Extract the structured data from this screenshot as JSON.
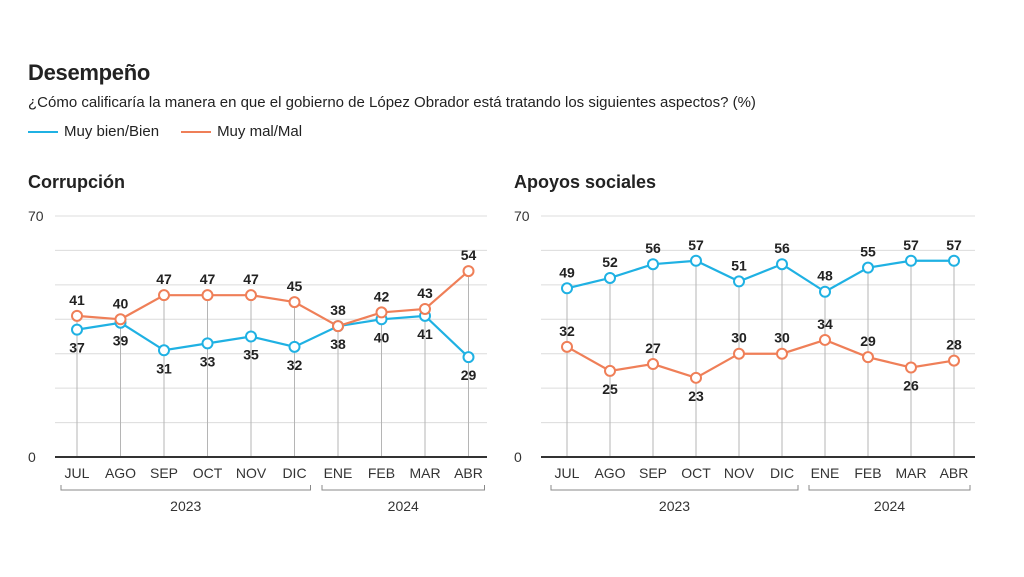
{
  "title": "Desempeño",
  "subtitle": "¿Cómo calificaría la manera en que el gobierno de López Obrador está tratando los siguientes aspectos? (%)",
  "legend": [
    {
      "label": "Muy bien/Bien",
      "color": "#1fb1e3"
    },
    {
      "label": "Muy mal/Mal",
      "color": "#ef7f58"
    }
  ],
  "chart_data": [
    {
      "type": "line",
      "title": "Corrupción",
      "categories": [
        "JUL",
        "AGO",
        "SEP",
        "OCT",
        "NOV",
        "DIC",
        "ENE",
        "FEB",
        "MAR",
        "ABR"
      ],
      "years": [
        {
          "label": "2023",
          "from": 0,
          "to": 5
        },
        {
          "label": "2024",
          "from": 6,
          "to": 9
        }
      ],
      "ylim": [
        0,
        70
      ],
      "yticks": [
        "0",
        "70"
      ],
      "series": [
        {
          "name": "Muy bien/Bien",
          "color": "#1fb1e3",
          "values": [
            37,
            39,
            31,
            33,
            35,
            32,
            38,
            40,
            41,
            29
          ]
        },
        {
          "name": "Muy mal/Mal",
          "color": "#ef7f58",
          "values": [
            41,
            40,
            47,
            47,
            47,
            45,
            38,
            42,
            43,
            54
          ]
        }
      ]
    },
    {
      "type": "line",
      "title": "Apoyos sociales",
      "categories": [
        "JUL",
        "AGO",
        "SEP",
        "OCT",
        "NOV",
        "DIC",
        "ENE",
        "FEB",
        "MAR",
        "ABR"
      ],
      "years": [
        {
          "label": "2023",
          "from": 0,
          "to": 5
        },
        {
          "label": "2024",
          "from": 6,
          "to": 9
        }
      ],
      "ylim": [
        0,
        70
      ],
      "yticks": [
        "0",
        "70"
      ],
      "series": [
        {
          "name": "Muy bien/Bien",
          "color": "#1fb1e3",
          "values": [
            49,
            52,
            56,
            57,
            51,
            56,
            48,
            55,
            57,
            57
          ]
        },
        {
          "name": "Muy mal/Mal",
          "color": "#ef7f58",
          "values": [
            32,
            25,
            27,
            23,
            30,
            30,
            34,
            29,
            26,
            28
          ]
        }
      ]
    }
  ]
}
